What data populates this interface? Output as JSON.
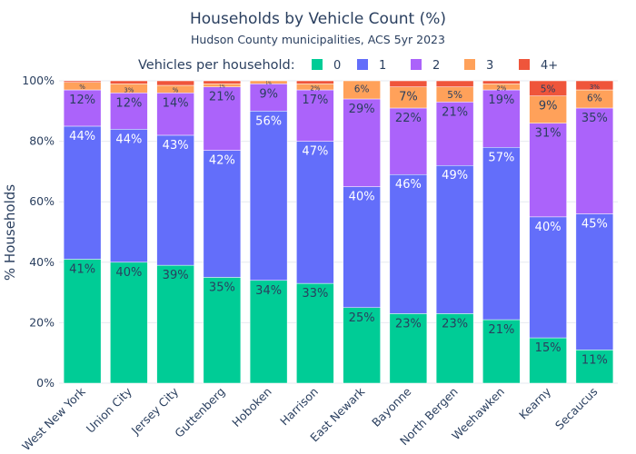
{
  "chart_data": {
    "type": "bar",
    "stacked": true,
    "title": "Households by Vehicle Count (%)",
    "subtitle": "Hudson County municipalities, ACS 5yr 2023",
    "xlabel": "",
    "ylabel": "% Households",
    "ylim": [
      0,
      100
    ],
    "yticks": [
      "0%",
      "20%",
      "40%",
      "60%",
      "80%",
      "100%"
    ],
    "legend": {
      "title": "Vehicles per household:",
      "placement": "top"
    },
    "categories": [
      "West New York",
      "Union City",
      "Jersey City",
      "Guttenberg",
      "Hoboken",
      "Harrison",
      "East Newark",
      "Bayonne",
      "North Bergen",
      "Weehawken",
      "Kearny",
      "Secaucus"
    ],
    "series": [
      {
        "name": "0",
        "color": "#00cc96",
        "values": [
          41,
          40,
          39,
          35,
          34,
          33,
          25,
          23,
          23,
          21,
          15,
          11
        ]
      },
      {
        "name": "1",
        "color": "#636efa",
        "values": [
          44,
          44,
          43,
          42,
          56,
          47,
          40,
          46,
          49,
          57,
          40,
          45
        ]
      },
      {
        "name": "2",
        "color": "#ab63fa",
        "values": [
          12,
          12,
          14,
          21,
          9,
          17,
          29,
          22,
          21,
          19,
          31,
          35
        ]
      },
      {
        "name": "3",
        "color": "#ffa15a",
        "values": [
          2.5,
          3,
          2.5,
          1,
          1,
          2,
          6,
          7,
          5,
          2,
          9,
          6
        ]
      },
      {
        "name": "4+",
        "color": "#ef553b",
        "values": [
          0.5,
          1,
          1.5,
          1,
          0,
          1,
          0,
          2,
          2,
          1,
          5,
          3
        ]
      }
    ],
    "labels": [
      [
        "41%",
        "40%",
        "39%",
        "35%",
        "34%",
        "33%",
        "25%",
        "23%",
        "23%",
        "21%",
        "15%",
        "11%"
      ],
      [
        "44%",
        "44%",
        "43%",
        "42%",
        "56%",
        "47%",
        "40%",
        "46%",
        "49%",
        "57%",
        "40%",
        "45%"
      ],
      [
        "12%",
        "12%",
        "14%",
        "21%",
        "9%",
        "17%",
        "29%",
        "22%",
        "21%",
        "19%",
        "31%",
        "35%"
      ],
      [
        "%",
        "3%",
        "%",
        "1%",
        "1%",
        "2%",
        "6%",
        "7%",
        "5%",
        "2%",
        "9%",
        "6%"
      ],
      [
        "",
        "",
        "",
        "",
        "",
        "",
        "",
        "",
        "",
        "",
        "5%",
        "3%"
      ]
    ]
  }
}
